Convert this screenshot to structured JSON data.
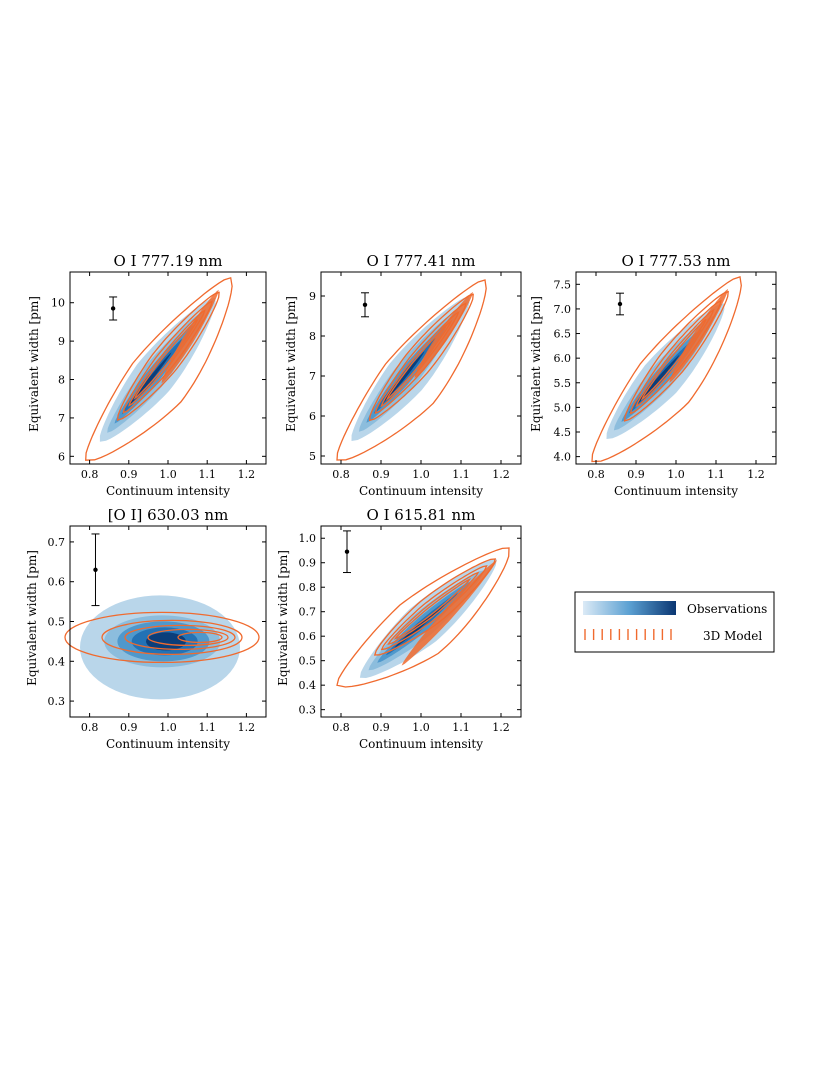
{
  "chart_data": [
    {
      "type": "contour",
      "title": "O I 777.19 nm",
      "xlabel": "Continuum intensity",
      "ylabel": "Equivalent width [pm]",
      "xlim": [
        0.75,
        1.25
      ],
      "ylim": [
        5.8,
        10.8
      ],
      "xticks": [
        0.8,
        0.9,
        1.0,
        1.1,
        1.2
      ],
      "xtick_labels": [
        "0.8",
        "0.9",
        "1.0",
        "1.1",
        "1.2"
      ],
      "yticks": [
        6,
        7,
        8,
        9,
        10
      ],
      "ytick_labels": [
        "6",
        "7",
        "8",
        "9",
        "10"
      ],
      "model": {
        "center": [
          0.965,
          7.9
        ],
        "end": [
          1.16,
          10.65
        ],
        "start": [
          0.79,
          5.9
        ],
        "spread": 0.8
      },
      "obs": {
        "start": [
          0.82,
          6.3
        ],
        "end": [
          1.13,
          10.25
        ],
        "spread": 0.7
      },
      "errorbar": {
        "x": 0.86,
        "y": 9.85,
        "err": 0.3
      }
    },
    {
      "type": "contour",
      "title": "O I 777.41 nm",
      "xlabel": "Continuum intensity",
      "ylabel": "Equivalent width [pm]",
      "xlim": [
        0.75,
        1.25
      ],
      "ylim": [
        4.8,
        9.6
      ],
      "xticks": [
        0.8,
        0.9,
        1.0,
        1.1,
        1.2
      ],
      "xtick_labels": [
        "0.8",
        "0.9",
        "1.0",
        "1.1",
        "1.2"
      ],
      "yticks": [
        5,
        6,
        7,
        8,
        9
      ],
      "ytick_labels": [
        "5",
        "6",
        "7",
        "8",
        "9"
      ],
      "model": {
        "center": [
          0.965,
          6.95
        ],
        "end": [
          1.16,
          9.4
        ],
        "start": [
          0.79,
          4.9
        ],
        "spread": 0.75
      },
      "obs": {
        "start": [
          0.82,
          5.3
        ],
        "end": [
          1.13,
          9.1
        ],
        "spread": 0.7
      },
      "errorbar": {
        "x": 0.86,
        "y": 8.78,
        "err": 0.3
      }
    },
    {
      "type": "contour",
      "title": "O I 777.53 nm",
      "xlabel": "Continuum intensity",
      "ylabel": "Equivalent width [pm]",
      "xlim": [
        0.75,
        1.25
      ],
      "ylim": [
        3.85,
        7.75
      ],
      "xticks": [
        0.8,
        0.9,
        1.0,
        1.1,
        1.2
      ],
      "xtick_labels": [
        "0.8",
        "0.9",
        "1.0",
        "1.1",
        "1.2"
      ],
      "yticks": [
        4.0,
        4.5,
        5.0,
        5.5,
        6.0,
        6.5,
        7.0,
        7.5
      ],
      "ytick_labels": [
        "4.0",
        "4.5",
        "5.0",
        "5.5",
        "6.0",
        "6.5",
        "7.0",
        "7.5"
      ],
      "model": {
        "center": [
          0.965,
          5.5
        ],
        "end": [
          1.16,
          7.65
        ],
        "start": [
          0.79,
          3.9
        ],
        "spread": 0.6
      },
      "obs": {
        "start": [
          0.82,
          4.3
        ],
        "end": [
          1.13,
          7.2
        ],
        "spread": 0.55
      },
      "errorbar": {
        "x": 0.86,
        "y": 7.1,
        "err": 0.22
      }
    },
    {
      "type": "contour",
      "title": "[O I] 630.03 nm",
      "xlabel": "Continuum intensity",
      "ylabel": "Equivalent width [pm]",
      "xlim": [
        0.75,
        1.25
      ],
      "ylim": [
        0.26,
        0.74
      ],
      "xticks": [
        0.8,
        0.9,
        1.0,
        1.1,
        1.2
      ],
      "xtick_labels": [
        "0.8",
        "0.9",
        "1.0",
        "1.1",
        "1.2"
      ],
      "yticks": [
        0.3,
        0.4,
        0.5,
        0.6,
        0.7
      ],
      "ytick_labels": [
        "0.3",
        "0.4",
        "0.5",
        "0.6",
        "0.7"
      ],
      "model": {
        "center": [
          1.02,
          0.46
        ],
        "end": [
          1.23,
          0.46
        ],
        "start": [
          0.79,
          0.47
        ],
        "spread": 0.1
      },
      "obs": {
        "start": [
          0.84,
          0.44
        ],
        "end": [
          1.22,
          0.45
        ],
        "spread": 0.18
      },
      "errorbar": {
        "x": 0.815,
        "y": 0.63,
        "err": 0.09
      }
    },
    {
      "type": "contour",
      "title": "O I 615.81 nm",
      "xlabel": "Continuum intensity",
      "ylabel": "Equivalent width [pm]",
      "xlim": [
        0.75,
        1.25
      ],
      "ylim": [
        0.27,
        1.05
      ],
      "xticks": [
        0.8,
        0.9,
        1.0,
        1.1,
        1.2
      ],
      "xtick_labels": [
        "0.8",
        "0.9",
        "1.0",
        "1.1",
        "1.2"
      ],
      "yticks": [
        0.3,
        0.4,
        0.5,
        0.6,
        0.7,
        0.8,
        0.9,
        1.0
      ],
      "ytick_labels": [
        "0.3",
        "0.4",
        "0.5",
        "0.6",
        "0.7",
        "0.8",
        "0.9",
        "1.0"
      ],
      "model": {
        "center": [
          0.93,
          0.48
        ],
        "end": [
          1.22,
          0.96
        ],
        "start": [
          0.79,
          0.4
        ],
        "spread": 0.14
      },
      "obs": {
        "start": [
          0.84,
          0.42
        ],
        "end": [
          1.2,
          0.93
        ],
        "spread": 0.13
      },
      "errorbar": {
        "x": 0.815,
        "y": 0.945,
        "err": 0.085
      }
    }
  ],
  "legend": {
    "observations_label": "Observations",
    "model_label": "3D Model",
    "placement": "right"
  },
  "colors": {
    "obs_light": "#b9d6ea",
    "obs_mid1": "#8cbddd",
    "obs_mid2": "#4f98cc",
    "obs_mid3": "#2372b5",
    "obs_dark": "#0b3e7a",
    "model": "#f06a2e"
  }
}
